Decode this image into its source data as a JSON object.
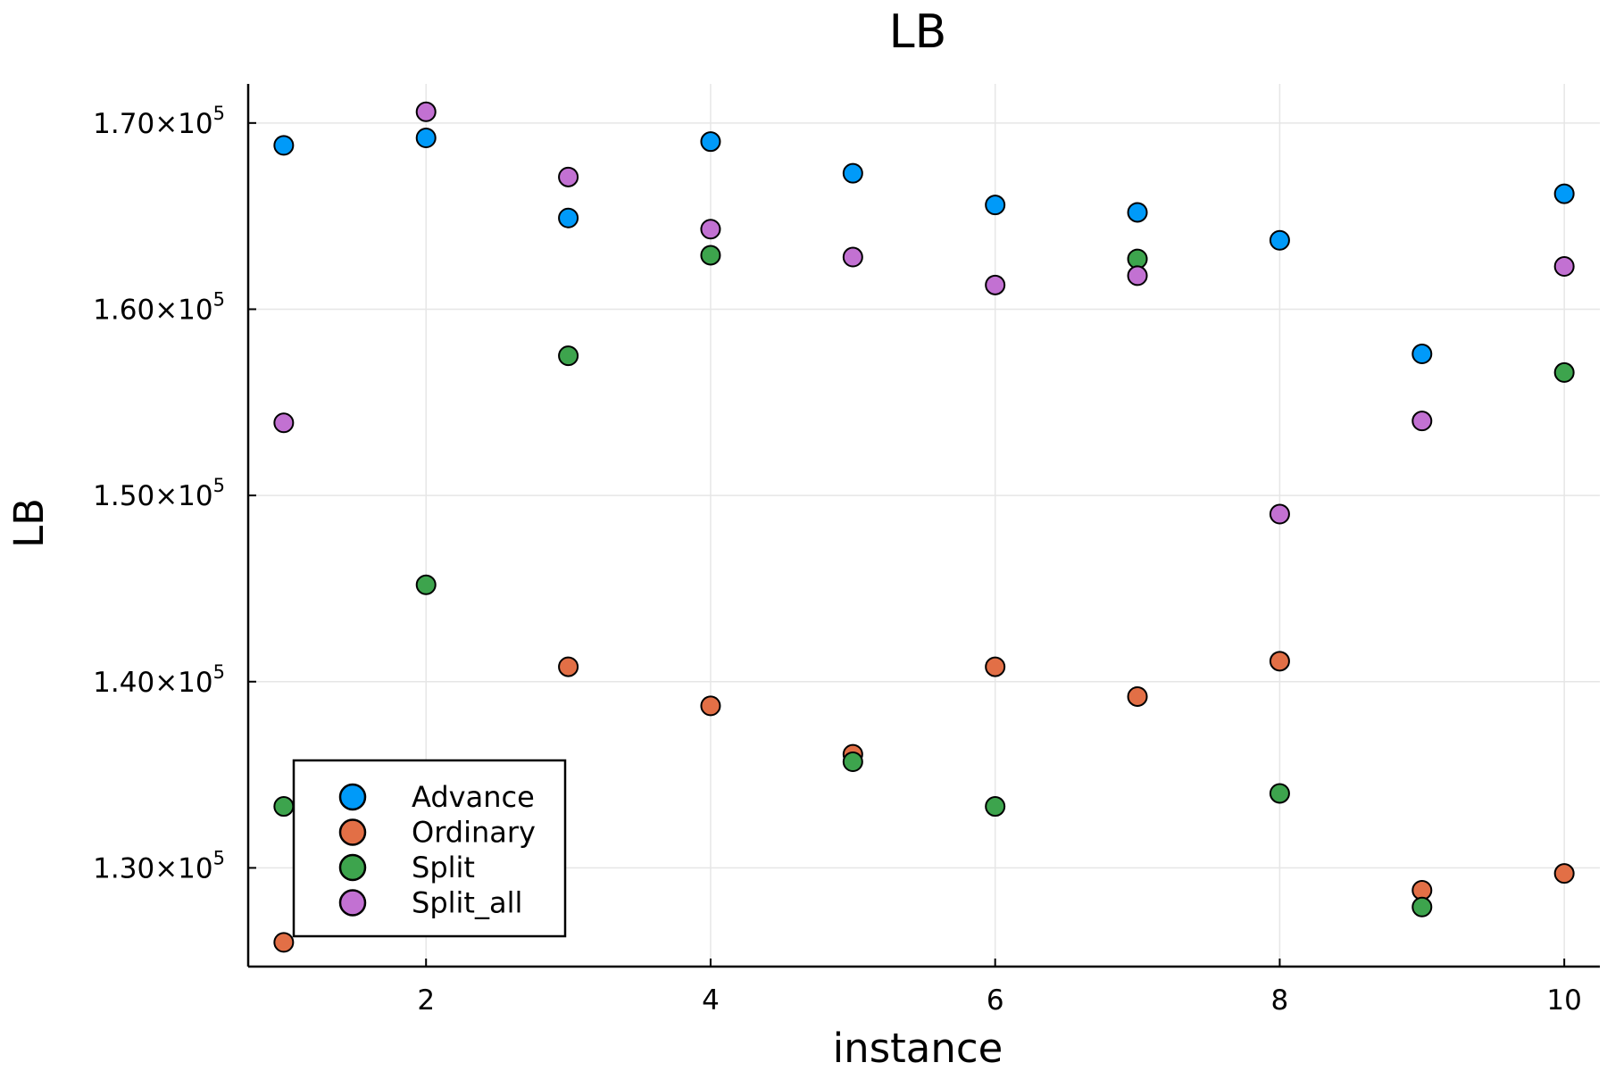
{
  "chart_data": {
    "type": "scatter",
    "title": "LB",
    "xlabel": "instance",
    "ylabel": "LB",
    "xlim": [
      0.75,
      10.25
    ],
    "ylim": [
      124700,
      172100
    ],
    "xticks": [
      {
        "value": 2,
        "label": "2"
      },
      {
        "value": 4,
        "label": "4"
      },
      {
        "value": 6,
        "label": "6"
      },
      {
        "value": 8,
        "label": "8"
      },
      {
        "value": 10,
        "label": "10"
      }
    ],
    "yticks": [
      {
        "value": 130000,
        "mantissa": "1.30×10",
        "exp": "5"
      },
      {
        "value": 140000,
        "mantissa": "1.40×10",
        "exp": "5"
      },
      {
        "value": 150000,
        "mantissa": "1.50×10",
        "exp": "5"
      },
      {
        "value": 160000,
        "mantissa": "1.60×10",
        "exp": "5"
      },
      {
        "value": 170000,
        "mantissa": "1.70×10",
        "exp": "5"
      }
    ],
    "grid": true,
    "legend": "bottom-left",
    "x": [
      1,
      2,
      3,
      4,
      5,
      6,
      7,
      8,
      9,
      10
    ],
    "series": [
      {
        "name": "Advance",
        "color": "#009af9",
        "values": [
          168800,
          169200,
          164900,
          169000,
          167300,
          165600,
          165200,
          163700,
          157600,
          166200
        ]
      },
      {
        "name": "Ordinary",
        "color": "#e26f46",
        "values": [
          126000,
          null,
          140800,
          138700,
          136100,
          140800,
          139200,
          141100,
          128800,
          129700
        ]
      },
      {
        "name": "Split",
        "color": "#3da44d",
        "values": [
          133300,
          145200,
          157500,
          162900,
          135700,
          133300,
          162700,
          134000,
          127900,
          156600
        ]
      },
      {
        "name": "Split_all",
        "color": "#c271d2",
        "values": [
          153900,
          170600,
          167100,
          164300,
          162800,
          161300,
          161800,
          149000,
          154000,
          162300
        ]
      }
    ]
  }
}
